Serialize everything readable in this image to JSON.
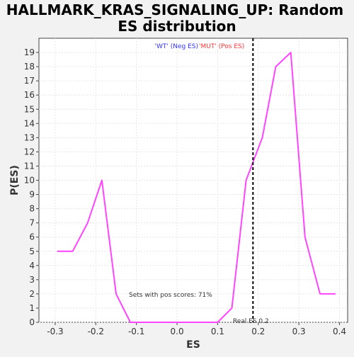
{
  "chart_data": {
    "type": "line",
    "title_line1": "HALLMARK_KRAS_SIGNALING_UP: Random",
    "title_line2": "ES distribution",
    "xlabel": "ES",
    "ylabel": "P(ES)",
    "xlim": [
      -0.34,
      0.42
    ],
    "ylim": [
      0,
      20
    ],
    "x_ticks": [
      -0.3,
      -0.2,
      -0.1,
      0.0,
      0.1,
      0.2,
      0.3,
      0.4
    ],
    "x_tick_labels": [
      "-0.3",
      "-0.2",
      "-0.1",
      "0.0",
      "0.1",
      "0.2",
      "0.3",
      "0.4"
    ],
    "y_ticks": [
      0,
      1,
      2,
      3,
      4,
      5,
      6,
      7,
      8,
      9,
      10,
      11,
      12,
      13,
      14,
      15,
      16,
      17,
      18,
      19
    ],
    "grid": true,
    "series": [
      {
        "color": "#ff44ff",
        "x": [
          -0.295,
          -0.257,
          -0.22,
          -0.185,
          -0.15,
          -0.115,
          -0.08,
          -0.04,
          0.0,
          0.03,
          0.065,
          0.1,
          0.135,
          0.17,
          0.21,
          0.243,
          0.28,
          0.315,
          0.352,
          0.39
        ],
        "y": [
          5,
          5,
          7,
          10,
          2,
          0,
          0,
          0,
          0,
          0,
          0,
          0,
          1,
          10,
          13,
          18,
          19,
          6,
          2,
          2
        ]
      }
    ],
    "real_es": {
      "x": 0.187,
      "label": "Real ES 0.2",
      "color": "#000000"
    },
    "annotations": {
      "legend_neg": "'WT' (Neg ES)",
      "legend_neg_color": "#3333ff",
      "legend_pos": "'MUT' (Pos ES)",
      "legend_pos_color": "#ff3333",
      "pos_scores": "Sets with pos scores: 71%"
    }
  }
}
